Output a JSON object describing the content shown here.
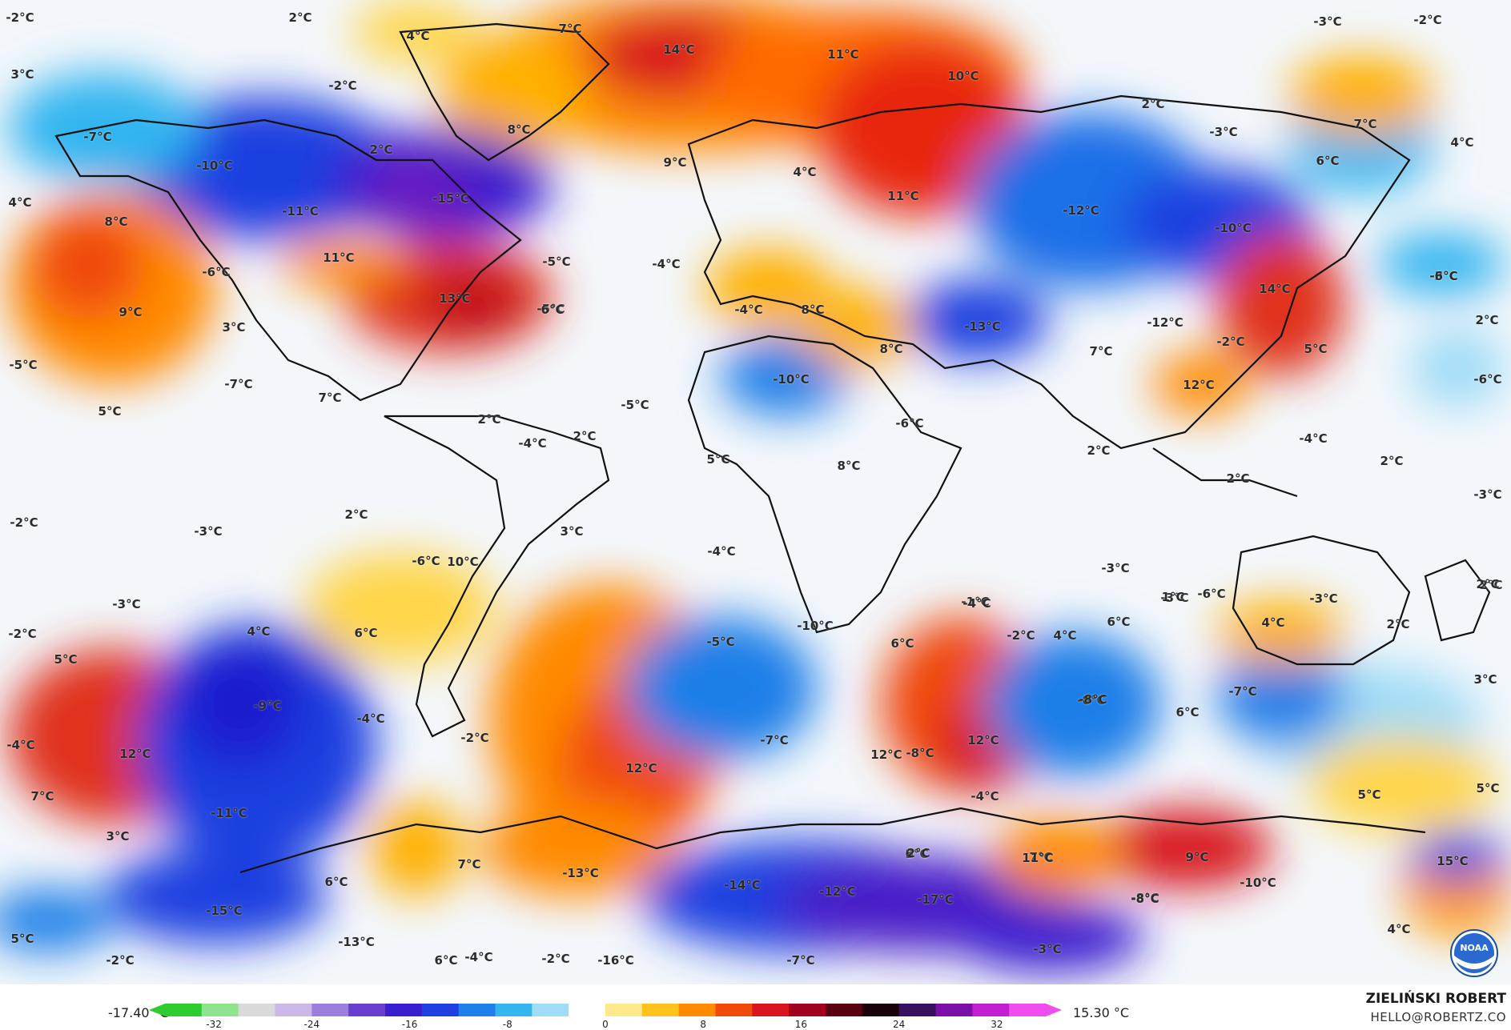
{
  "colorbar": {
    "min_label": "-17.40 °C",
    "max_label": "15.30 °C",
    "ticks": [
      "-32",
      "-24",
      "-16",
      "-8",
      "0",
      "8",
      "16",
      "24",
      "32"
    ],
    "tick_values": [
      -32,
      -24,
      -16,
      -8,
      0,
      8,
      16,
      24,
      32
    ],
    "range": [
      -36,
      36
    ],
    "colors": [
      "#2ecc2e",
      "#8ee38e",
      "#d9d9d9",
      "#c9b8e8",
      "#9b7fdc",
      "#6a3fd0",
      "#3a1fcf",
      "#1f3fe0",
      "#1f7fe8",
      "#33b5f0",
      "#9fdcf7",
      "#ffffff",
      "#ffe98c",
      "#ffc21a",
      "#ff8a00",
      "#f04a0a",
      "#d8141e",
      "#a0001e",
      "#5a0010",
      "#1a0008",
      "#3a1060",
      "#7a10a8",
      "#c21fd0",
      "#f04cf0"
    ]
  },
  "credit": {
    "name": "ZIELIŃSKI ROBERT",
    "email": "HELLO@ROBERTZ.CO"
  },
  "logo": {
    "text": "NOAA"
  },
  "labels": [
    {
      "t": "-2°C"
    },
    {
      "t": "2°C"
    },
    {
      "t": "3°C"
    },
    {
      "t": "4°C"
    },
    {
      "t": "7°C"
    },
    {
      "t": "14°C"
    },
    {
      "t": "11°C"
    },
    {
      "t": "10°C"
    },
    {
      "t": "-3°C"
    },
    {
      "t": "-2°C"
    },
    {
      "t": "-2°C"
    },
    {
      "t": "2°C"
    },
    {
      "t": "7°C"
    },
    {
      "t": "-7°C"
    },
    {
      "t": "8°C"
    },
    {
      "t": "2°C"
    },
    {
      "t": "-3°C"
    },
    {
      "t": "4°C"
    },
    {
      "t": "-10°C"
    },
    {
      "t": "-15°C"
    },
    {
      "t": "9°C"
    },
    {
      "t": "4°C"
    },
    {
      "t": "11°C"
    },
    {
      "t": "4°C"
    },
    {
      "t": "-5°C"
    },
    {
      "t": "-4°C"
    },
    {
      "t": "-11°C"
    },
    {
      "t": "6°C"
    },
    {
      "t": "-12°C"
    },
    {
      "t": "-10°C"
    },
    {
      "t": "8°C"
    },
    {
      "t": "-3°C"
    },
    {
      "t": "-6°C"
    },
    {
      "t": "11°C"
    },
    {
      "t": "-5°C"
    },
    {
      "t": "-4°C"
    },
    {
      "t": "14°C"
    },
    {
      "t": "-6°C"
    },
    {
      "t": "9°C"
    },
    {
      "t": "13°C"
    },
    {
      "t": "6°C"
    },
    {
      "t": "8°C"
    },
    {
      "t": "-13°C"
    },
    {
      "t": "-12°C"
    },
    {
      "t": "-2°C"
    },
    {
      "t": "2°C"
    },
    {
      "t": "3°C"
    },
    {
      "t": "5°C"
    },
    {
      "t": "-5°C"
    },
    {
      "t": "-7°C"
    },
    {
      "t": "-10°C"
    },
    {
      "t": "8°C"
    },
    {
      "t": "7°C"
    },
    {
      "t": "-6°C"
    },
    {
      "t": "5°C"
    },
    {
      "t": "12°C"
    },
    {
      "t": "7°C"
    },
    {
      "t": "2°C"
    },
    {
      "t": "-5°C"
    },
    {
      "t": "2°C"
    },
    {
      "t": "-4°C"
    },
    {
      "t": "-6°C"
    },
    {
      "t": "-4°C"
    },
    {
      "t": "5°C"
    },
    {
      "t": "2°C"
    },
    {
      "t": "8°C"
    },
    {
      "t": "2°C"
    },
    {
      "t": "2°C"
    },
    {
      "t": "-2°C"
    },
    {
      "t": "-3°C"
    },
    {
      "t": "2°C"
    },
    {
      "t": "-3°C"
    },
    {
      "t": "3°C"
    },
    {
      "t": "-4°C"
    },
    {
      "t": "10°C"
    },
    {
      "t": "-6°C"
    },
    {
      "t": "-3°C"
    },
    {
      "t": "2°C"
    },
    {
      "t": "-3°C"
    },
    {
      "t": "-3°C"
    },
    {
      "t": "-6°C"
    },
    {
      "t": "1°C"
    },
    {
      "t": "-3°C"
    },
    {
      "t": "-1°C"
    },
    {
      "t": "-2°C"
    },
    {
      "t": "-4°C"
    },
    {
      "t": "2°C"
    },
    {
      "t": "-2°C"
    },
    {
      "t": "4°C"
    },
    {
      "t": "6°C"
    },
    {
      "t": "-5°C"
    },
    {
      "t": "-10°C"
    },
    {
      "t": "6°C"
    },
    {
      "t": "4°C"
    },
    {
      "t": "6°C"
    },
    {
      "t": "4°C"
    },
    {
      "t": "5°C"
    },
    {
      "t": "2°C"
    },
    {
      "t": "-9°C"
    },
    {
      "t": "-4°C"
    },
    {
      "t": "-4°C"
    },
    {
      "t": "12°C"
    },
    {
      "t": "-8°C"
    },
    {
      "t": "-7°C"
    },
    {
      "t": "6°C"
    },
    {
      "t": "-8°C"
    },
    {
      "t": "3°C"
    },
    {
      "t": "-7°C"
    },
    {
      "t": "12°C"
    },
    {
      "t": "12°C"
    },
    {
      "t": "-2°C"
    },
    {
      "t": "12°C"
    },
    {
      "t": "7°C"
    },
    {
      "t": "-11°C"
    },
    {
      "t": "-4°C"
    },
    {
      "t": "5°C"
    },
    {
      "t": "5°C"
    },
    {
      "t": "-8°C"
    },
    {
      "t": "3°C"
    },
    {
      "t": "2°C"
    },
    {
      "t": "7°C"
    },
    {
      "t": "6°C"
    },
    {
      "t": "9°C"
    },
    {
      "t": "15°C"
    },
    {
      "t": "-13°C"
    },
    {
      "t": "11°C"
    },
    {
      "t": "-14°C"
    },
    {
      "t": "-12°C"
    },
    {
      "t": "-17°C"
    },
    {
      "t": "-8°C"
    },
    {
      "t": "-10°C"
    },
    {
      "t": "-15°C"
    },
    {
      "t": "-13°C"
    },
    {
      "t": "6°C"
    },
    {
      "t": "7°C"
    },
    {
      "t": "2°C"
    },
    {
      "t": "-8°C"
    },
    {
      "t": "4°C"
    },
    {
      "t": "5°C"
    },
    {
      "t": "-2°C"
    },
    {
      "t": "6°C"
    },
    {
      "t": "-4°C"
    },
    {
      "t": "-2°C"
    },
    {
      "t": "-16°C"
    },
    {
      "t": "-3°C"
    },
    {
      "t": "-7°C"
    }
  ]
}
